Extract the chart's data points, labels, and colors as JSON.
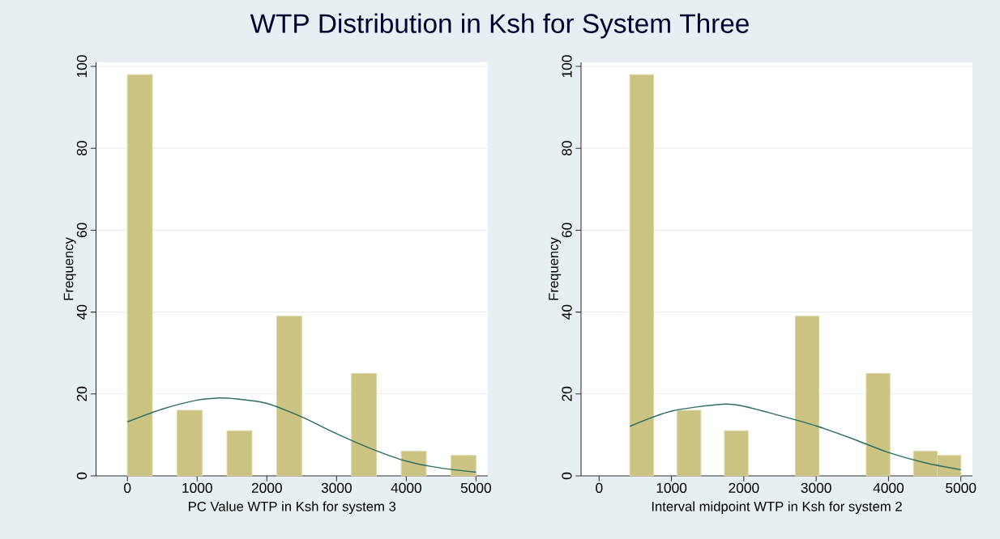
{
  "chart_data": [
    {
      "type": "histogram",
      "title": "WTP Distribution in Ksh for System Three",
      "xlabel": "PC Value WTP in Ksh for system 3",
      "ylabel": "Frequency",
      "bins": [
        0,
        357.1,
        714.3,
        1071.4,
        1428.6,
        1785.7,
        2142.9,
        2500,
        2857.1,
        3214.3,
        3571.4,
        3928.6,
        4285.7,
        4642.9,
        5000
      ],
      "values": [
        98,
        0,
        16,
        0,
        11,
        0,
        39,
        0,
        0,
        25,
        0,
        6,
        0,
        5
      ],
      "color": "#cbc381",
      "series": [
        {
          "type": "line",
          "color": "#2b6e63",
          "x": [
            0,
            500,
            1000,
            1300,
            1500,
            2000,
            2500,
            3000,
            3500,
            4000,
            4500,
            5000
          ],
          "values": [
            13.2,
            16.3,
            18.5,
            19.0,
            18.9,
            17.7,
            14.4,
            10.3,
            6.6,
            3.6,
            1.9,
            0.9
          ]
        }
      ],
      "xlim": [
        -450,
        5170
      ],
      "ylim": [
        0,
        101
      ],
      "xticks": [
        0,
        1000,
        2000,
        3000,
        4000,
        5000
      ],
      "yticks": [
        0,
        20,
        40,
        60,
        80,
        100
      ],
      "grid": "y"
    },
    {
      "type": "histogram",
      "xlabel": "Interval midpoint WTP in Ksh for system 2",
      "ylabel": "Frequency",
      "bins": [
        425,
        751.8,
        1078.6,
        1405.4,
        1732.1,
        2058.9,
        2385.7,
        2712.5,
        3039.3,
        3366.1,
        3692.9,
        4019.6,
        4346.4,
        4673.2,
        5000
      ],
      "values": [
        98,
        0,
        16,
        0,
        11,
        0,
        0,
        39,
        0,
        0,
        25,
        0,
        6,
        5
      ],
      "color": "#cbc381",
      "series": [
        {
          "type": "line",
          "color": "#2b6e63",
          "x": [
            425,
            1000,
            1700,
            2000,
            2500,
            3000,
            3500,
            4000,
            4500,
            5000
          ],
          "values": [
            12.1,
            15.8,
            17.5,
            17.0,
            14.7,
            12.2,
            9.1,
            5.7,
            3.2,
            1.5
          ]
        }
      ],
      "xlim": [
        -250,
        5160
      ],
      "ylim": [
        0,
        101
      ],
      "xticks": [
        0,
        1000,
        2000,
        3000,
        4000,
        5000
      ],
      "yticks": [
        0,
        20,
        40,
        60,
        80,
        100
      ],
      "grid": "y"
    }
  ]
}
